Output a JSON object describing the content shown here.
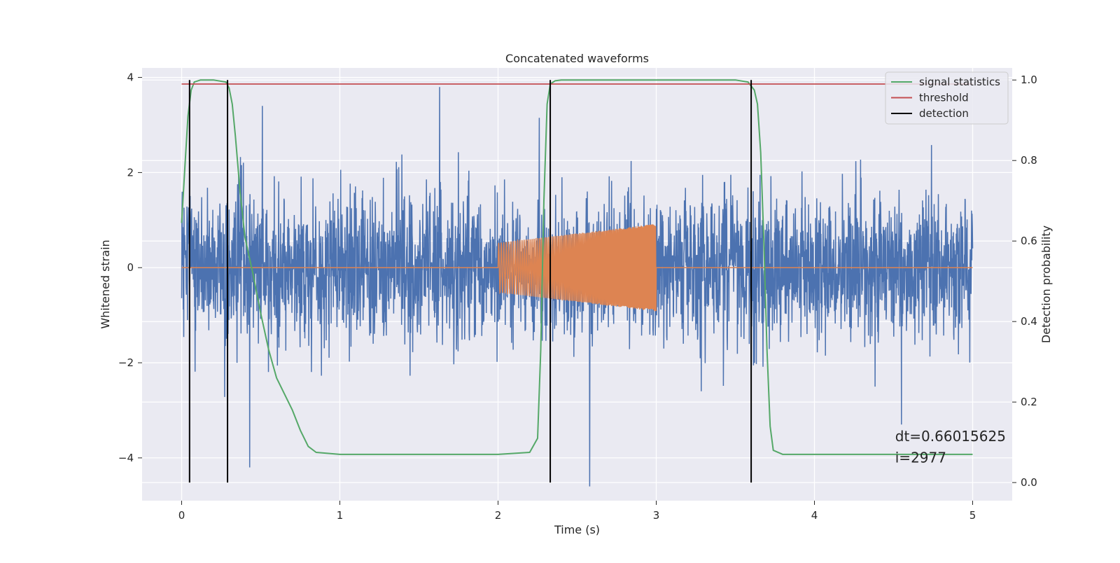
{
  "chart_data": {
    "type": "line",
    "title": "Concatenated waveforms",
    "xlabel": "Time (s)",
    "ylabel_left": "Whitened strain",
    "ylabel_right": "Detection probability",
    "xlim": [
      -0.25,
      5.25
    ],
    "ylim_left": [
      -4.9,
      4.2
    ],
    "ylim_right": [
      -0.045,
      1.03
    ],
    "xticks": [
      0,
      1,
      2,
      3,
      4,
      5
    ],
    "xtick_labels": [
      "0",
      "1",
      "2",
      "3",
      "4",
      "5"
    ],
    "yticks_left": [
      4,
      2,
      0,
      -2,
      -4
    ],
    "ytick_labels_left": [
      "4",
      "2",
      "0",
      "−2",
      "−4"
    ],
    "yticks_right": [
      1.0,
      0.8,
      0.6,
      0.4,
      0.2,
      0.0
    ],
    "ytick_labels_right": [
      "1.0",
      "0.8",
      "0.6",
      "0.4",
      "0.2",
      "0.0"
    ],
    "grid": true,
    "legend_position": "top-right",
    "legend": [
      {
        "label": "signal statistics",
        "color": "#55a868"
      },
      {
        "label": "threshold",
        "color": "#c44e52"
      },
      {
        "label": "detection",
        "color": "#000000"
      }
    ],
    "series": [
      {
        "name": "",
        "axis": "left",
        "color": "#4c72b0",
        "description": "whitened noise, approx. gaussian with sigma ~0.75",
        "x_range": [
          0,
          5
        ],
        "sigma": 0.75,
        "extremes": [
          {
            "x": 1.63,
            "y": 3.8
          },
          {
            "x": 0.43,
            "y": -4.2
          },
          {
            "x": 2.58,
            "y": -4.6
          },
          {
            "x": 0.51,
            "y": 3.4
          },
          {
            "x": 4.55,
            "y": -3.3
          },
          {
            "x": 2.26,
            "y": 3.15
          }
        ]
      },
      {
        "name": "",
        "axis": "left",
        "color": "#dd8452",
        "description": "injected chirp waveform",
        "x_range": [
          2.0,
          3.0
        ],
        "amplitude_start": 0.52,
        "amplitude_end": 0.92
      },
      {
        "name": "signal statistics",
        "axis": "right",
        "color": "#55a868",
        "x": [
          0.0,
          0.02,
          0.04,
          0.06,
          0.08,
          0.12,
          0.2,
          0.28,
          0.3,
          0.32,
          0.34,
          0.37,
          0.4,
          0.45,
          0.5,
          0.55,
          0.6,
          0.65,
          0.7,
          0.75,
          0.8,
          0.85,
          1.0,
          2.0,
          2.2,
          2.25,
          2.27,
          2.29,
          2.31,
          2.33,
          2.36,
          2.4,
          2.5,
          3.0,
          3.5,
          3.58,
          3.62,
          3.64,
          3.66,
          3.68,
          3.7,
          3.72,
          3.74,
          3.8,
          4.0,
          5.0
        ],
        "values": [
          0.645,
          0.78,
          0.91,
          0.975,
          0.995,
          1.0,
          1.0,
          0.995,
          0.98,
          0.94,
          0.86,
          0.72,
          0.61,
          0.52,
          0.42,
          0.33,
          0.26,
          0.22,
          0.18,
          0.13,
          0.09,
          0.075,
          0.07,
          0.07,
          0.075,
          0.11,
          0.33,
          0.7,
          0.94,
          0.99,
          0.998,
          1.0,
          1.0,
          1.0,
          1.0,
          0.995,
          0.975,
          0.94,
          0.82,
          0.6,
          0.33,
          0.14,
          0.08,
          0.07,
          0.07,
          0.07
        ]
      },
      {
        "name": "threshold",
        "axis": "right",
        "color": "#c44e52",
        "x": [
          0,
          5
        ],
        "values": [
          0.99,
          0.99
        ]
      },
      {
        "name": "detection",
        "axis": "right",
        "color": "#000000",
        "type": "vlines",
        "x": [
          0.05,
          0.29,
          2.33,
          3.6
        ],
        "range": [
          0.0,
          1.0
        ]
      }
    ],
    "annotations": [
      {
        "text": "dt=0.66015625",
        "x": 4.51,
        "y": -3.65
      },
      {
        "text": " i=2977",
        "x": 4.51,
        "y": -4.1
      }
    ]
  }
}
